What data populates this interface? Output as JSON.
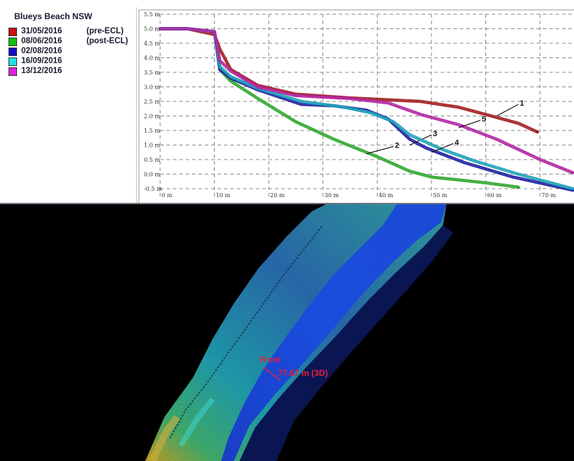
{
  "legend": {
    "title": "Blueys Beach NSW",
    "entries": [
      {
        "date": "31/05/2016",
        "note": "(pre-ECL)",
        "color": "#d01010"
      },
      {
        "date": "08/06/2016",
        "note": "(post-ECL)",
        "color": "#10c010"
      },
      {
        "date": "02/08/2016",
        "note": "",
        "color": "#1010c8"
      },
      {
        "date": "16/09/2016",
        "note": "",
        "color": "#20e0e0"
      },
      {
        "date": "13/12/2016",
        "note": "",
        "color": "#e020e0"
      }
    ]
  },
  "chart_data": {
    "type": "scatter",
    "title": "",
    "xlabel": "",
    "ylabel": "",
    "xlim": [
      0,
      76
    ],
    "ylim": [
      -0.5,
      5.5
    ],
    "x_ticks": [
      "0 m",
      "10 m",
      "20 m",
      "30 m",
      "40 m",
      "50 m",
      "60 m",
      "70 m"
    ],
    "y_ticks": [
      "5.5 m",
      "5.0 m",
      "4.5 m",
      "4.0 m",
      "3.5 m",
      "3.0 m",
      "2.5 m",
      "2.0 m",
      "1.5 m",
      "1.0 m",
      "0.5 m",
      "0.0 m",
      "-0.5 m"
    ],
    "grid": true,
    "series": [
      {
        "label": "1",
        "color": "#a01818",
        "points": [
          [
            0,
            5.0
          ],
          [
            5,
            5.0
          ],
          [
            10,
            4.8
          ],
          [
            11,
            4.3
          ],
          [
            13,
            3.6
          ],
          [
            18,
            3.05
          ],
          [
            25,
            2.75
          ],
          [
            35,
            2.62
          ],
          [
            48,
            2.5
          ],
          [
            55,
            2.3
          ],
          [
            60,
            2.05
          ],
          [
            66,
            1.75
          ],
          [
            69.5,
            1.45
          ]
        ]
      },
      {
        "label": "2",
        "color": "#2aa52a",
        "points": [
          [
            0,
            5.0
          ],
          [
            5,
            5.0
          ],
          [
            10,
            4.9
          ],
          [
            11,
            3.6
          ],
          [
            13,
            3.2
          ],
          [
            18,
            2.6
          ],
          [
            25,
            1.8
          ],
          [
            32,
            1.2
          ],
          [
            40,
            0.6
          ],
          [
            46,
            0.1
          ],
          [
            50,
            -0.1
          ],
          [
            60,
            -0.3
          ],
          [
            66,
            -0.45
          ]
        ]
      },
      {
        "label": "3",
        "color": "#1a1aa0",
        "points": [
          [
            0,
            5.0
          ],
          [
            5,
            5.0
          ],
          [
            10,
            4.9
          ],
          [
            11,
            3.6
          ],
          [
            13,
            3.3
          ],
          [
            18,
            2.9
          ],
          [
            26,
            2.4
          ],
          [
            32,
            2.35
          ],
          [
            38,
            2.2
          ],
          [
            42,
            1.9
          ],
          [
            46,
            1.2
          ],
          [
            49,
            0.9
          ],
          [
            56,
            0.4
          ],
          [
            65,
            -0.1
          ],
          [
            76,
            -0.55
          ]
        ]
      },
      {
        "label": "4",
        "color": "#1aa0b8",
        "points": [
          [
            0,
            5.0
          ],
          [
            5,
            5.0
          ],
          [
            10,
            4.9
          ],
          [
            11,
            3.7
          ],
          [
            13,
            3.35
          ],
          [
            18,
            2.95
          ],
          [
            26,
            2.5
          ],
          [
            34,
            2.3
          ],
          [
            39,
            2.1
          ],
          [
            43,
            1.8
          ],
          [
            46,
            1.35
          ],
          [
            52,
            0.85
          ],
          [
            58,
            0.45
          ],
          [
            66,
            0.0
          ],
          [
            76,
            -0.5
          ]
        ]
      },
      {
        "label": "5",
        "color": "#b020a0",
        "points": [
          [
            0,
            5.0
          ],
          [
            5,
            5.0
          ],
          [
            10,
            4.9
          ],
          [
            11,
            3.9
          ],
          [
            13,
            3.55
          ],
          [
            18,
            3.0
          ],
          [
            25,
            2.7
          ],
          [
            35,
            2.6
          ],
          [
            42,
            2.45
          ],
          [
            48,
            2.05
          ],
          [
            55,
            1.7
          ],
          [
            62,
            1.2
          ],
          [
            70,
            0.5
          ],
          [
            76,
            0.05
          ]
        ]
      }
    ]
  },
  "map": {
    "measure_from": "From",
    "measure_value": "77.67 m (3D)"
  }
}
